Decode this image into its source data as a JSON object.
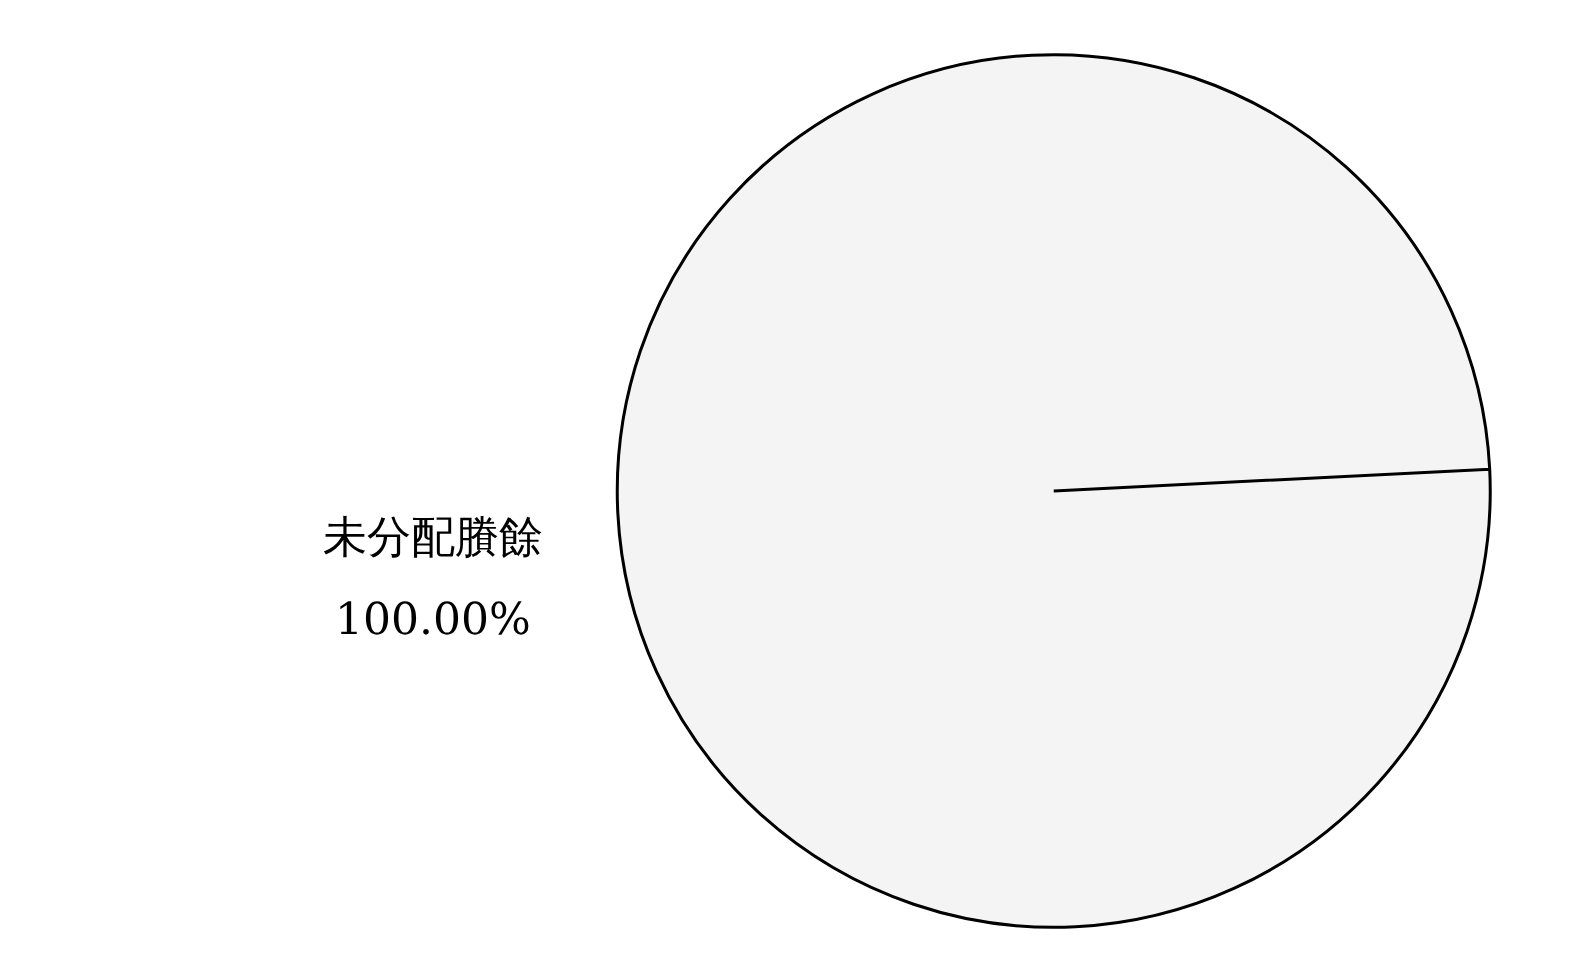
{
  "chart_data": {
    "type": "pie",
    "categories": [
      "未分配賸餘"
    ],
    "values": [
      100
    ],
    "colors": [
      "#f4f4f4"
    ],
    "value_labels": [
      "100.00%"
    ]
  }
}
